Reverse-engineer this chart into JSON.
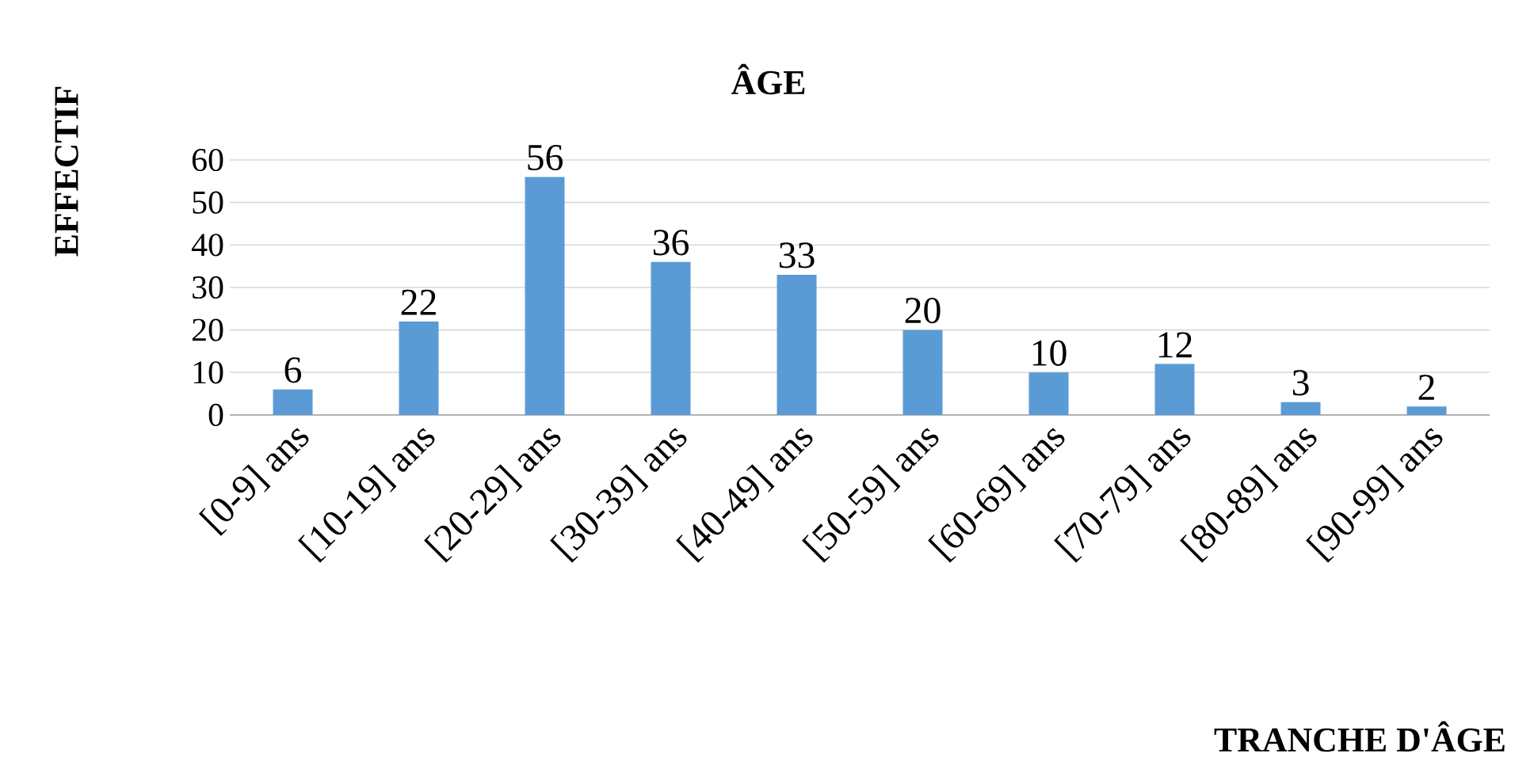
{
  "chart_data": {
    "type": "bar",
    "title": "ÂGE",
    "annotations": [
      "TRANCHE D'ÂGE"
    ],
    "ylabel": "EFFECTIF",
    "categories": [
      "[0-9] ans",
      "[10-19] ans",
      "[20-29] ans",
      "[30-39] ans",
      "[40-49] ans",
      "[50-59] ans",
      "[60-69] ans",
      "[70-79] ans",
      "[80-89] ans",
      "[90-99] ans"
    ],
    "values": [
      6,
      22,
      56,
      36,
      33,
      20,
      10,
      12,
      3,
      2
    ],
    "color": "#5b9bd5",
    "ylim": [
      0,
      60
    ],
    "yticks": [
      0,
      10,
      20,
      30,
      40,
      50,
      60
    ],
    "grid": "y",
    "data_labels": true
  }
}
